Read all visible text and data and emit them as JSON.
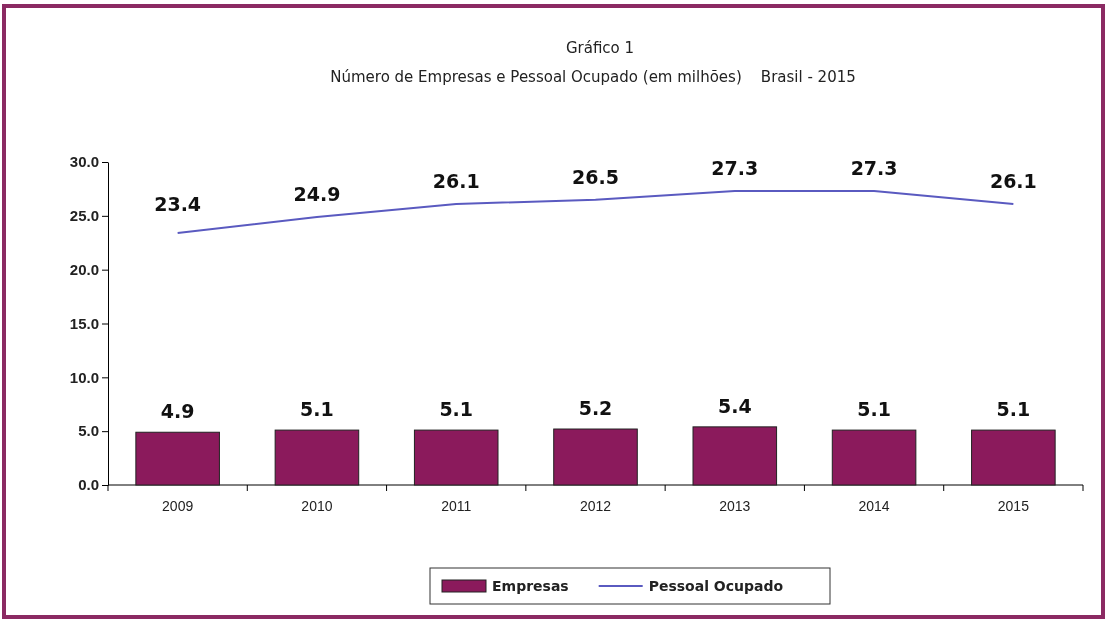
{
  "chart_data": {
    "type": "bar",
    "title": "Gráfico 1",
    "subtitle": "Número de Empresas e Pessoal Ocupado (em milhões)    Brasil - 2015",
    "categories": [
      "2009",
      "2010",
      "2011",
      "2012",
      "2013",
      "2014",
      "2015"
    ],
    "series": [
      {
        "name": "Empresas",
        "color": "#8b1a5c",
        "values": [
          4.9,
          5.1,
          5.1,
          5.2,
          5.4,
          5.1,
          5.1
        ]
      },
      {
        "name": "Pessoal Ocupado",
        "type": "line",
        "color": "#5a5ac0",
        "values": [
          23.4,
          24.9,
          26.1,
          26.5,
          27.3,
          27.3,
          26.1
        ]
      }
    ],
    "ylim": [
      0,
      30
    ],
    "yticks": [
      {
        "value": 0,
        "label": "0.0"
      },
      {
        "value": 5,
        "label": "5.0"
      },
      {
        "value": 10,
        "label": "10.0"
      },
      {
        "value": 15,
        "label": "15.0"
      },
      {
        "value": 20,
        "label": "20.0"
      },
      {
        "value": 25,
        "label": "25.0"
      },
      {
        "value": 30,
        "label": "30.0"
      }
    ],
    "data_labels": true,
    "legend": "bottom",
    "grid": false,
    "marker": "none",
    "line_style": "solid"
  }
}
